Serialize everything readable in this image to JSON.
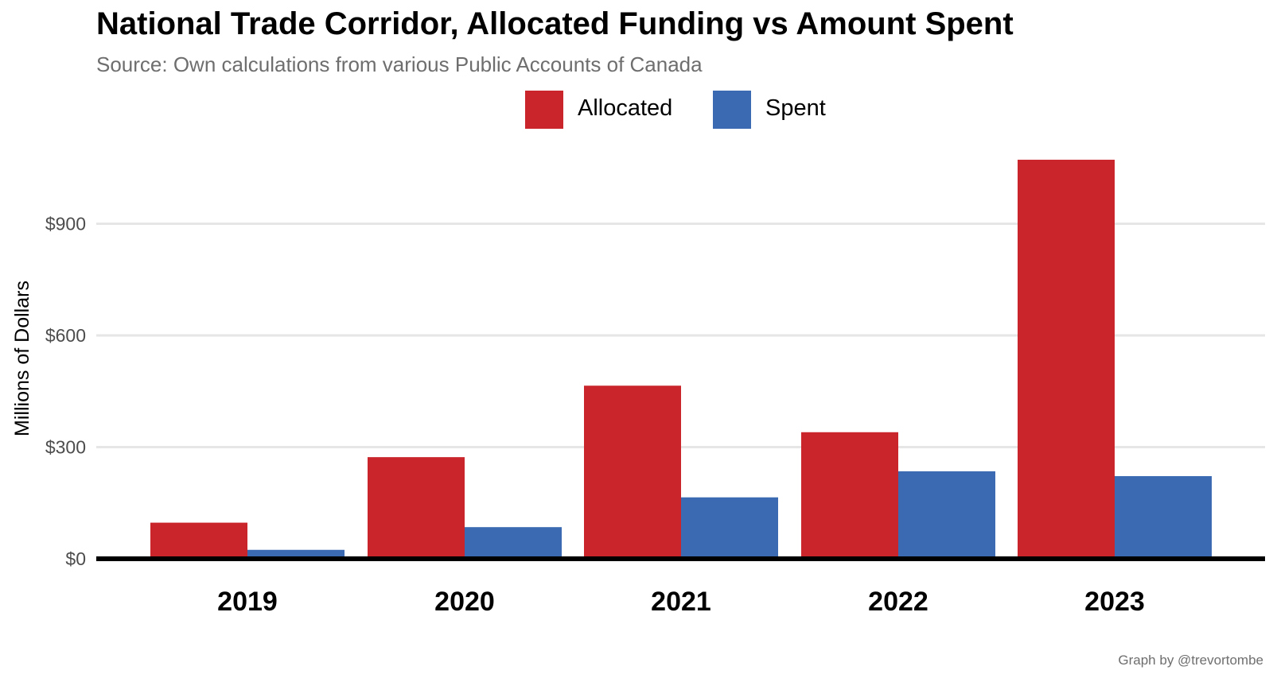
{
  "chart_data": {
    "type": "bar",
    "title": "National Trade Corridor, Allocated Funding vs Amount Spent",
    "subtitle": "Source: Own calculations from various Public Accounts of Canada",
    "caption": "Graph by @trevortombe",
    "xlabel": "",
    "ylabel": "Millions of Dollars",
    "categories": [
      "2019",
      "2020",
      "2021",
      "2022",
      "2023"
    ],
    "series": [
      {
        "name": "Allocated",
        "color": "#c9252b",
        "values": [
          97,
          273,
          465,
          340,
          1072
        ]
      },
      {
        "name": "Spent",
        "color": "#3b6ab2",
        "values": [
          24,
          85,
          165,
          235,
          222
        ]
      }
    ],
    "ylim": [
      0,
      1080
    ],
    "yticks": [
      0,
      300,
      600,
      900
    ],
    "ytick_labels": [
      "$0",
      "$300",
      "$600",
      "$900"
    ],
    "grid": true,
    "legend_position": "top"
  }
}
